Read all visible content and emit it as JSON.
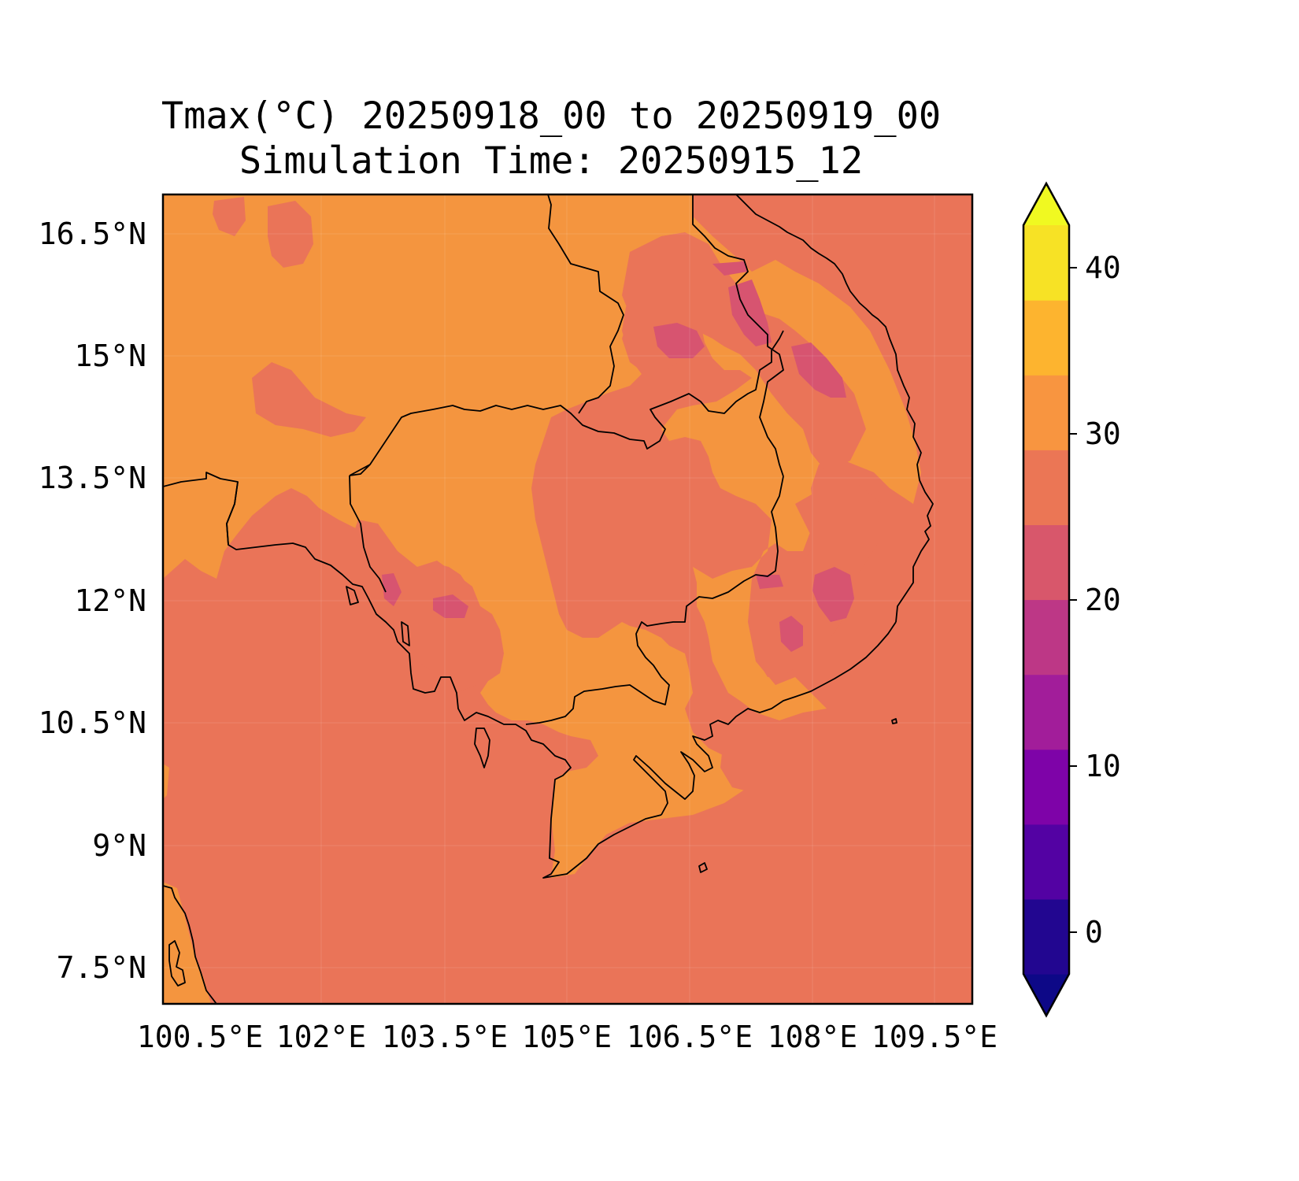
{
  "title": {
    "line1": "Tmax(°C) 20250918_00 to 20250919_00",
    "line2": "Simulation Time: 20250915_12"
  },
  "map": {
    "region": "Cambodia / southern Vietnam / Gulf of Thailand",
    "lon_ticks": [
      "100.5°E",
      "102°E",
      "103.5°E",
      "105°E",
      "106.5°E",
      "108°E",
      "109.5°E"
    ],
    "lat_ticks": [
      "16.5°N",
      "15°N",
      "13.5°N",
      "12°N",
      "10.5°N",
      "9°N",
      "7.5°N"
    ],
    "lon_range": [
      100.5,
      110.4
    ],
    "lat_range": [
      7.1,
      17.0
    ],
    "fill_colors": {
      "sea_and_coast_20_25": "#ea7458",
      "land_25_30": "#f4953f",
      "highland_15_20": "#d75470"
    }
  },
  "colorbar": {
    "ticks": [
      "0",
      "10",
      "20",
      "30",
      "40"
    ],
    "tick_values": [
      0,
      10,
      20,
      30,
      40
    ],
    "levels": [
      -5,
      0,
      5,
      10,
      15,
      20,
      25,
      30,
      35,
      40,
      45
    ],
    "extend": "both",
    "colors": [
      "#0d0887",
      "#220690",
      "#5302a3",
      "#7e03a8",
      "#a21d9a",
      "#bd3786",
      "#d8576b",
      "#eb7655",
      "#f89540",
      "#fdb42f",
      "#f7e225",
      "#f0f921"
    ]
  }
}
